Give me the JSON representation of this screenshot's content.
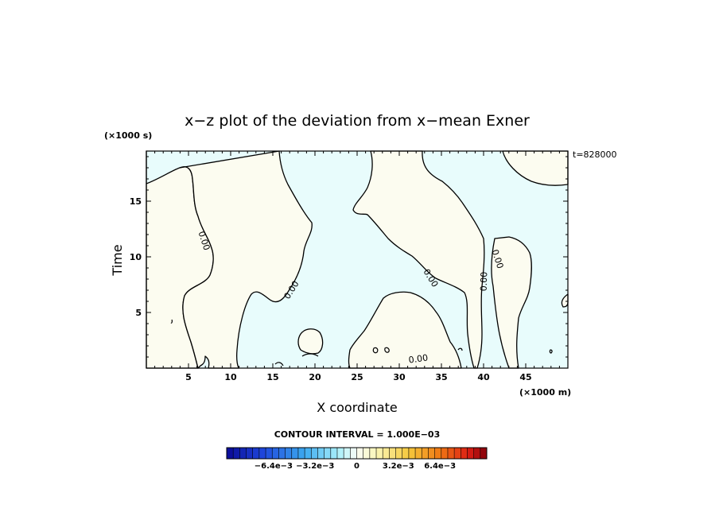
{
  "chart_data": {
    "type": "contour",
    "title": "x−z plot of the deviation from x−mean Exner",
    "xlabel": "X coordinate",
    "ylabel": "Time",
    "x_unit": "(×1000 m)",
    "y_unit": "(×1000 s)",
    "time_stamp": "t=828000",
    "xlim": [
      0,
      50
    ],
    "ylim": [
      0,
      19.5
    ],
    "x_ticks": [
      "5",
      "10",
      "15",
      "20",
      "25",
      "30",
      "35",
      "40",
      "45"
    ],
    "y_ticks": [
      "5",
      "10",
      "15"
    ],
    "contour_labels": [
      "0.00",
      "0.00",
      "0.00",
      "0.00",
      "0.00",
      "0.00"
    ],
    "contour_interval_text": "CONTOUR INTERVAL = 1.000E−03",
    "colorbar": {
      "labels": [
        "−6.4e−3",
        "−3.2e−3",
        "0",
        "3.2e−3",
        "6.4e−3"
      ],
      "label_values": [
        -0.0064,
        -0.0032,
        0,
        0.0032,
        0.0064
      ]
    },
    "region_colors": {
      "positive": "#fcfcf0",
      "negative": "#e8fcfc",
      "contour": "#000000"
    }
  }
}
